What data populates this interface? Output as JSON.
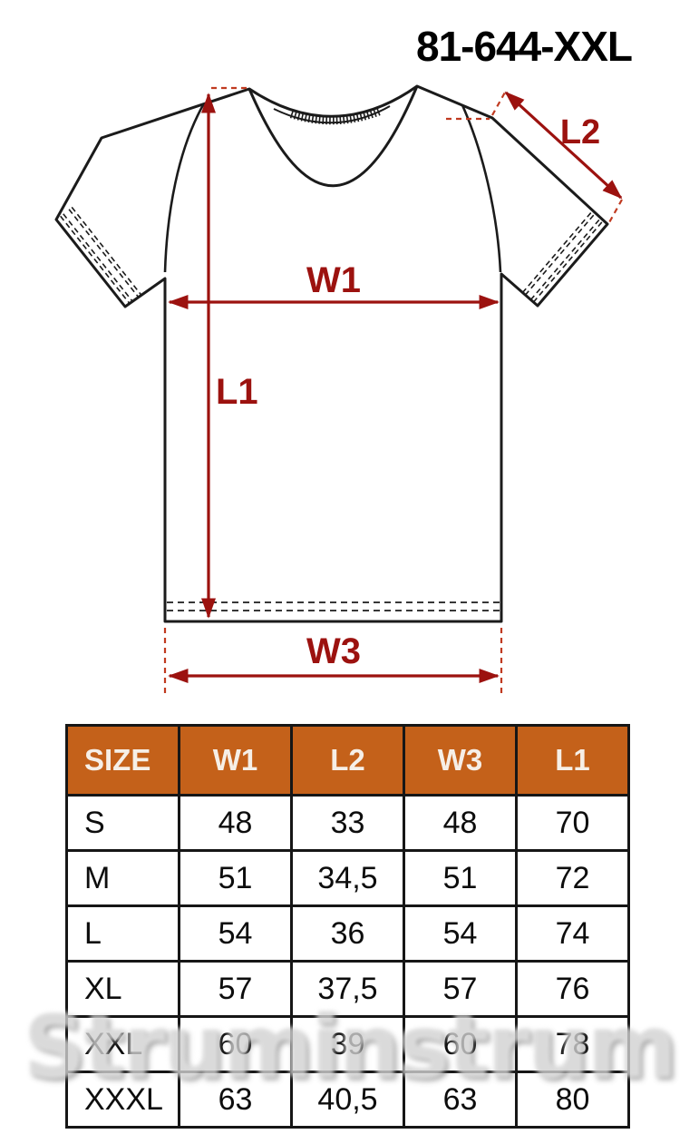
{
  "title": "81-644-XXL",
  "watermark": "Struminstrum",
  "diagram": {
    "labels": {
      "w1": "W1",
      "l1": "L1",
      "l2": "L2",
      "w3": "W3"
    },
    "colors": {
      "dimension": "#9c120f",
      "dash": "#c03a20",
      "outline": "#1b1b1b"
    }
  },
  "table": {
    "columns": [
      "SIZE",
      "W1",
      "L2",
      "W3",
      "L1"
    ],
    "rows": [
      {
        "size": "S",
        "values": [
          "48",
          "33",
          "48",
          "70"
        ]
      },
      {
        "size": "M",
        "values": [
          "51",
          "34,5",
          "51",
          "72"
        ]
      },
      {
        "size": "L",
        "values": [
          "54",
          "36",
          "54",
          "74"
        ]
      },
      {
        "size": "XL",
        "values": [
          "57",
          "37,5",
          "57",
          "76"
        ]
      },
      {
        "size": "XXL",
        "values": [
          "60",
          "39",
          "60",
          "78"
        ]
      },
      {
        "size": "XXXL",
        "values": [
          "63",
          "40,5",
          "63",
          "80"
        ]
      }
    ],
    "colors": {
      "header_bg": "#c4611a",
      "header_text": "#f6efe7",
      "border": "#161616"
    }
  }
}
